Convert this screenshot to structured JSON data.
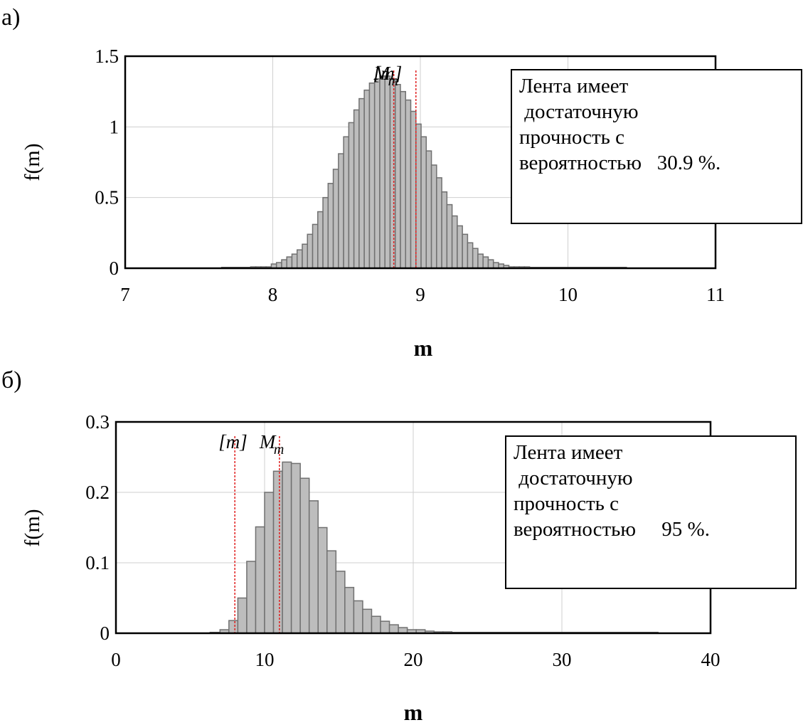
{
  "charts": [
    {
      "panel_label": "а)",
      "info_lines": [
        "Лента имеет",
        " достаточную",
        "прочность с",
        "вероятностью   30.9 %."
      ],
      "markers": {
        "mean_label": "M",
        "mean_sub": "m",
        "limit_label": "[m]"
      }
    },
    {
      "panel_label": "б)",
      "info_lines": [
        "Лента имеет",
        " достаточную",
        "прочность с",
        "вероятностью     95 %."
      ],
      "markers": {
        "mean_label": "M",
        "mean_sub": "m",
        "limit_label": "[m]"
      }
    }
  ],
  "chart_data": [
    {
      "type": "bar",
      "xlabel": "m",
      "ylabel": "f(m)",
      "xlim": [
        7,
        11
      ],
      "ylim": [
        0,
        1.5
      ],
      "xticks": [
        7,
        8,
        9,
        10,
        11
      ],
      "yticks": [
        0,
        0.5,
        1,
        1.5
      ],
      "ytick_labels": [
        "0",
        "0.5",
        "1",
        "1.5"
      ],
      "grid": true,
      "bar_color": "#bdbdbd",
      "bar_edge_color": "#707070",
      "marker_color": "#e02020",
      "mean_M_m": 8.82,
      "limit_m": 8.97,
      "bins": {
        "x0": 7.85,
        "width": 0.035,
        "values": [
          0.01,
          0.01,
          0.01,
          0.01,
          0.03,
          0.04,
          0.06,
          0.08,
          0.1,
          0.13,
          0.17,
          0.24,
          0.31,
          0.4,
          0.5,
          0.6,
          0.7,
          0.81,
          0.93,
          1.03,
          1.12,
          1.2,
          1.26,
          1.31,
          1.34,
          1.36,
          1.36,
          1.34,
          1.3,
          1.25,
          1.19,
          1.11,
          1.02,
          0.93,
          0.83,
          0.73,
          0.64,
          0.54,
          0.45,
          0.37,
          0.3,
          0.24,
          0.18,
          0.14,
          0.1,
          0.08,
          0.06,
          0.04,
          0.03,
          0.02,
          0.01,
          0.01,
          0.01,
          0.01
        ]
      },
      "baseline_range": [
        7.65,
        10.4
      ]
    },
    {
      "type": "bar",
      "xlabel": "m",
      "ylabel": "f(m)",
      "xlim": [
        0,
        40
      ],
      "ylim": [
        0,
        0.3
      ],
      "xticks": [
        0,
        10,
        20,
        30,
        40
      ],
      "yticks": [
        0,
        0.1,
        0.2,
        0.3
      ],
      "ytick_labels": [
        "0",
        "0.1",
        "0.2",
        "0.3"
      ],
      "grid": true,
      "bar_color": "#bdbdbd",
      "bar_edge_color": "#707070",
      "marker_color": "#e02020",
      "mean_M_m": 11.0,
      "limit_m": 8.0,
      "bins": {
        "x0": 7.0,
        "width": 0.6,
        "values": [
          0.005,
          0.018,
          0.05,
          0.102,
          0.151,
          0.2,
          0.23,
          0.243,
          0.241,
          0.22,
          0.188,
          0.15,
          0.117,
          0.088,
          0.065,
          0.046,
          0.034,
          0.024,
          0.017,
          0.012,
          0.008,
          0.005,
          0.005,
          0.003,
          0.002,
          0.002,
          0.001,
          0.001,
          0.001,
          0.001,
          0.001,
          0.001,
          0.001,
          0.001,
          0.001,
          0.001,
          0.001,
          0.001,
          0.001,
          0.001
        ]
      },
      "baseline_range": [
        6.3,
        36.5
      ]
    }
  ]
}
